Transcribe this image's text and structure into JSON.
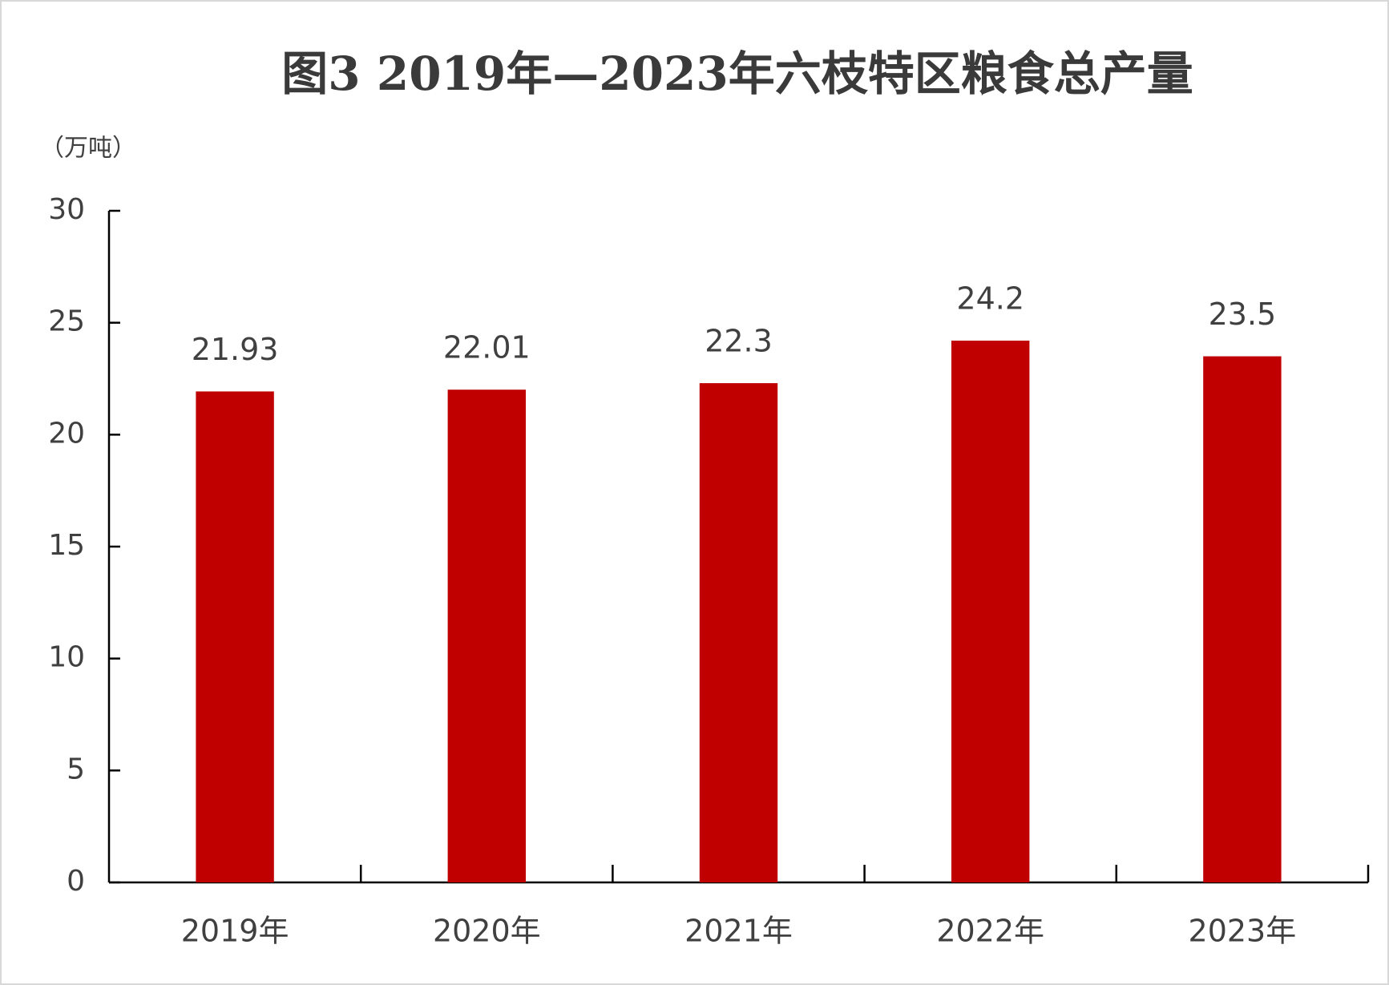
{
  "chart_data": {
    "type": "bar",
    "title": "图3  2019年—2023年六枝特区粮食总产量",
    "y_label": "（万吨）",
    "categories": [
      "2019年",
      "2020年",
      "2021年",
      "2022年",
      "2023年"
    ],
    "values": [
      21.93,
      22.01,
      22.3,
      24.2,
      23.5
    ],
    "color": "#c00000",
    "ylim": [
      0,
      30
    ],
    "yticks": [
      0,
      5,
      10,
      15,
      20,
      25,
      30
    ],
    "grid": false
  }
}
